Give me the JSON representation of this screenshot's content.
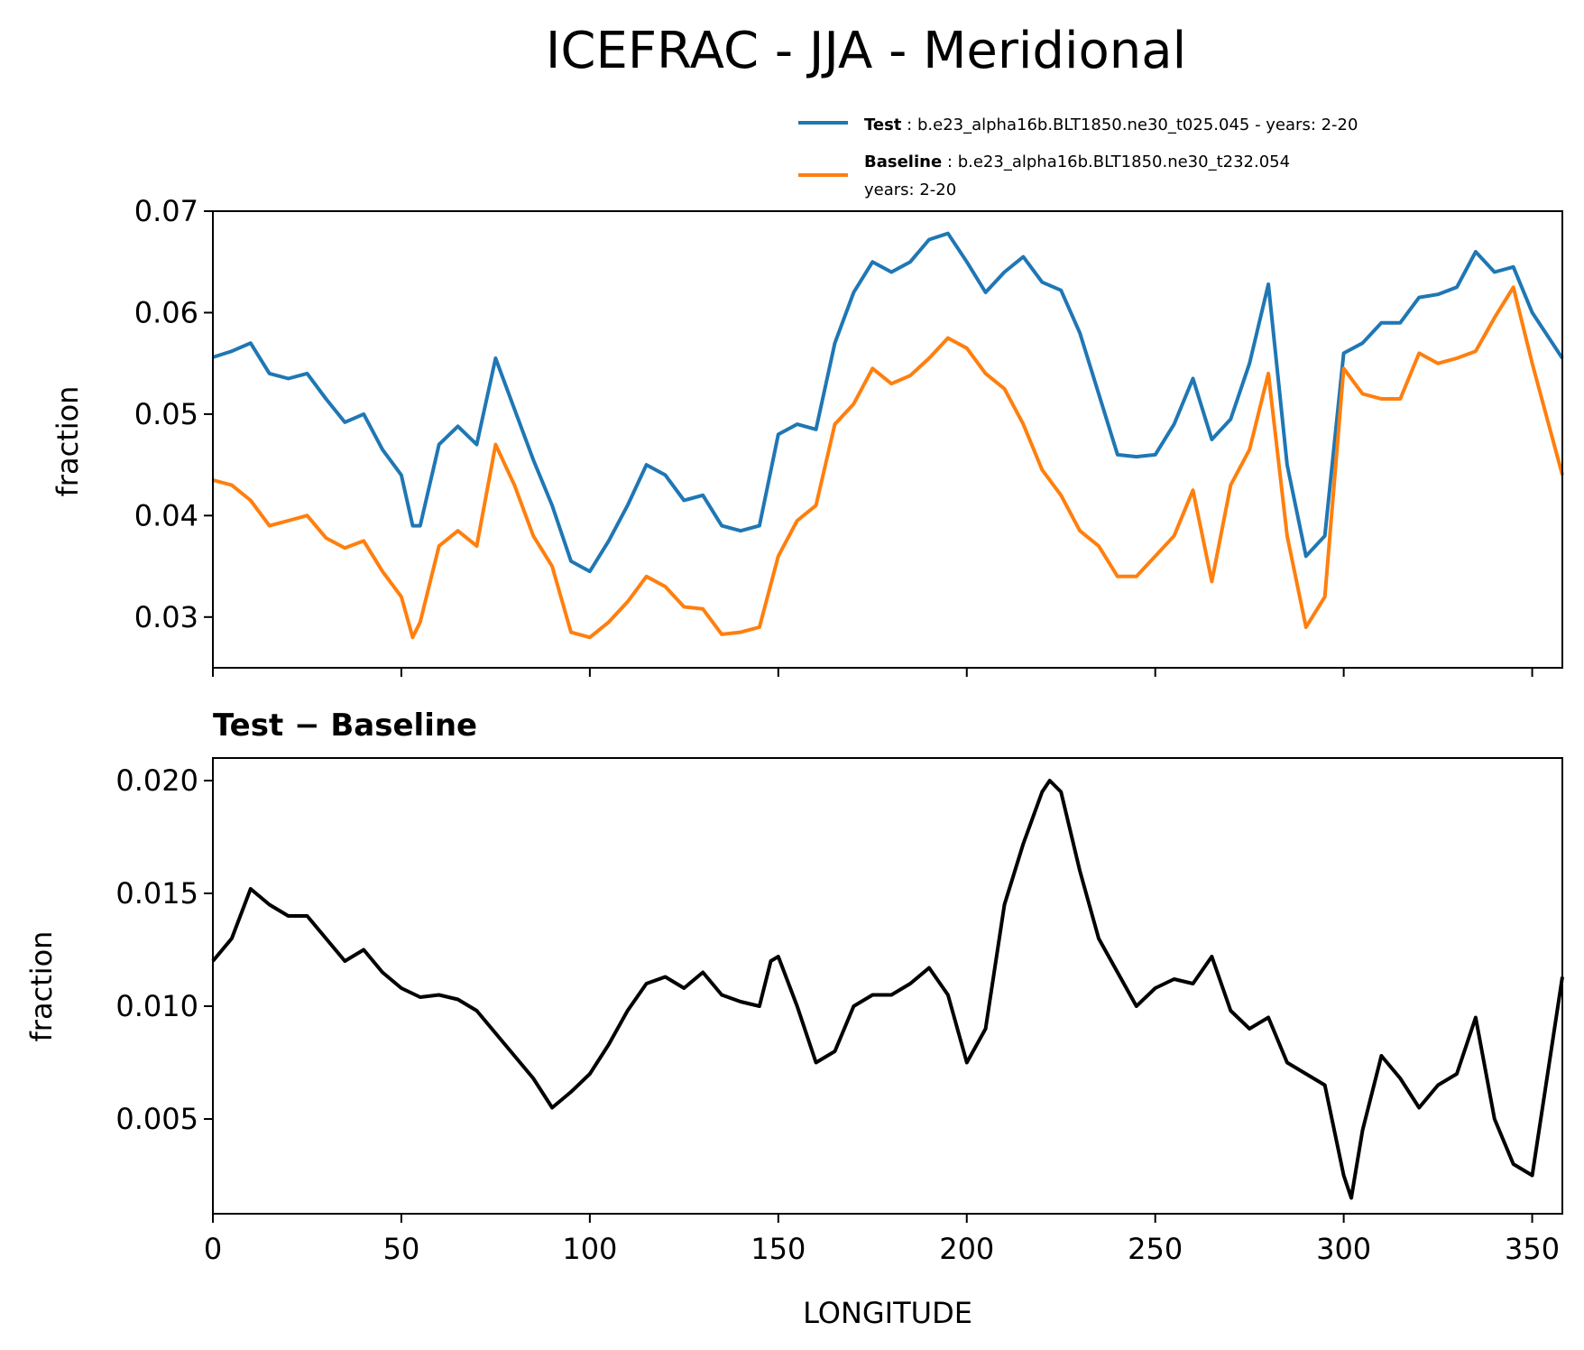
{
  "chart_data": [
    {
      "type": "line",
      "title": "ICEFRAC - JJA - Meridional",
      "xlabel": "",
      "ylabel": "fraction",
      "xlim": [
        0,
        358
      ],
      "ylim": [
        0.025,
        0.07
      ],
      "xticks": [
        0,
        50,
        100,
        150,
        200,
        250,
        300,
        350
      ],
      "yticks": [
        0.03,
        0.04,
        0.05,
        0.06,
        0.07
      ],
      "ytick_labels": [
        "0.03",
        "0.04",
        "0.05",
        "0.06",
        "0.07"
      ],
      "legend": {
        "placement": "top-right",
        "entries": [
          {
            "bold": "Test",
            "sep": ":",
            "text": "b.e23_alpha16b.BLT1850.ne30_t025.045 - years: 2-20",
            "text2": ""
          },
          {
            "bold": "Baseline",
            "sep": ":",
            "text": "b.e23_alpha16b.BLT1850.ne30_t232.054",
            "text2": "years: 2-20"
          }
        ]
      },
      "series": [
        {
          "name": "Test",
          "color": "#1f77b4",
          "x": [
            0,
            5,
            10,
            15,
            20,
            25,
            30,
            35,
            40,
            45,
            50,
            53,
            55,
            60,
            65,
            70,
            75,
            80,
            85,
            90,
            95,
            100,
            105,
            110,
            115,
            120,
            125,
            130,
            135,
            140,
            145,
            150,
            155,
            160,
            165,
            170,
            175,
            180,
            185,
            190,
            195,
            200,
            205,
            210,
            215,
            220,
            225,
            230,
            235,
            240,
            245,
            250,
            255,
            260,
            265,
            270,
            275,
            280,
            285,
            290,
            295,
            300,
            305,
            310,
            315,
            320,
            325,
            330,
            335,
            340,
            345,
            350,
            358
          ],
          "values": [
            0.0556,
            0.0562,
            0.057,
            0.054,
            0.0535,
            0.054,
            0.0515,
            0.0492,
            0.05,
            0.0465,
            0.044,
            0.039,
            0.039,
            0.047,
            0.0488,
            0.047,
            0.0555,
            0.0505,
            0.0455,
            0.041,
            0.0355,
            0.0345,
            0.0375,
            0.041,
            0.045,
            0.044,
            0.0415,
            0.042,
            0.039,
            0.0385,
            0.039,
            0.048,
            0.049,
            0.0485,
            0.057,
            0.062,
            0.065,
            0.064,
            0.065,
            0.0672,
            0.0678,
            0.065,
            0.062,
            0.064,
            0.0655,
            0.063,
            0.0622,
            0.058,
            0.052,
            0.046,
            0.0458,
            0.046,
            0.049,
            0.0535,
            0.0475,
            0.0495,
            0.055,
            0.0628,
            0.045,
            0.036,
            0.038,
            0.056,
            0.057,
            0.059,
            0.059,
            0.0615,
            0.0618,
            0.0625,
            0.066,
            0.064,
            0.0645,
            0.06,
            0.0555
          ]
        },
        {
          "name": "Baseline",
          "color": "#ff7f0e",
          "x": [
            0,
            5,
            10,
            15,
            20,
            25,
            30,
            35,
            40,
            45,
            50,
            53,
            55,
            60,
            65,
            70,
            75,
            80,
            85,
            90,
            95,
            100,
            105,
            110,
            115,
            120,
            125,
            130,
            135,
            140,
            145,
            150,
            155,
            160,
            165,
            170,
            175,
            180,
            185,
            190,
            195,
            200,
            205,
            210,
            215,
            220,
            225,
            230,
            235,
            240,
            245,
            250,
            255,
            260,
            265,
            270,
            275,
            280,
            285,
            290,
            295,
            300,
            305,
            310,
            315,
            320,
            325,
            330,
            335,
            340,
            345,
            350,
            358
          ],
          "values": [
            0.0435,
            0.043,
            0.0415,
            0.039,
            0.0395,
            0.04,
            0.0378,
            0.0368,
            0.0375,
            0.0345,
            0.032,
            0.028,
            0.0295,
            0.037,
            0.0385,
            0.037,
            0.047,
            0.043,
            0.038,
            0.035,
            0.0285,
            0.028,
            0.0295,
            0.0315,
            0.034,
            0.033,
            0.031,
            0.0308,
            0.0283,
            0.0285,
            0.029,
            0.036,
            0.0395,
            0.041,
            0.049,
            0.051,
            0.0545,
            0.053,
            0.0538,
            0.0555,
            0.0575,
            0.0565,
            0.054,
            0.0525,
            0.049,
            0.0445,
            0.042,
            0.0385,
            0.037,
            0.034,
            0.034,
            0.036,
            0.038,
            0.0425,
            0.0335,
            0.043,
            0.0465,
            0.054,
            0.038,
            0.029,
            0.032,
            0.0545,
            0.052,
            0.0515,
            0.0515,
            0.056,
            0.055,
            0.0555,
            0.0562,
            0.0595,
            0.0625,
            0.055,
            0.044
          ]
        }
      ]
    },
    {
      "type": "line",
      "title": "Test − Baseline",
      "xlabel": "LONGITUDE",
      "ylabel": "fraction",
      "xlim": [
        0,
        358
      ],
      "ylim": [
        0.0008,
        0.021
      ],
      "xticks": [
        0,
        50,
        100,
        150,
        200,
        250,
        300,
        350
      ],
      "xtick_labels": [
        "0",
        "50",
        "100",
        "150",
        "200",
        "250",
        "300",
        "350"
      ],
      "yticks": [
        0.005,
        0.01,
        0.015,
        0.02
      ],
      "ytick_labels": [
        "0.005",
        "0.010",
        "0.015",
        "0.020"
      ],
      "series": [
        {
          "name": "Test − Baseline",
          "color": "#000000",
          "x": [
            0,
            5,
            10,
            15,
            20,
            25,
            30,
            35,
            40,
            45,
            50,
            55,
            60,
            65,
            70,
            75,
            80,
            85,
            90,
            95,
            100,
            105,
            110,
            115,
            120,
            125,
            130,
            135,
            140,
            145,
            148,
            150,
            155,
            160,
            165,
            170,
            175,
            180,
            185,
            190,
            195,
            200,
            205,
            210,
            215,
            220,
            222,
            225,
            230,
            235,
            240,
            245,
            250,
            255,
            260,
            265,
            270,
            275,
            280,
            285,
            290,
            295,
            300,
            302,
            305,
            310,
            315,
            320,
            325,
            330,
            335,
            340,
            345,
            350,
            358
          ],
          "values": [
            0.012,
            0.013,
            0.0152,
            0.0145,
            0.014,
            0.014,
            0.013,
            0.012,
            0.0125,
            0.0115,
            0.0108,
            0.0104,
            0.0105,
            0.0103,
            0.0098,
            0.0088,
            0.0078,
            0.0068,
            0.0055,
            0.0062,
            0.007,
            0.0083,
            0.0098,
            0.011,
            0.0113,
            0.0108,
            0.0115,
            0.0105,
            0.0102,
            0.01,
            0.012,
            0.0122,
            0.01,
            0.0075,
            0.008,
            0.01,
            0.0105,
            0.0105,
            0.011,
            0.0117,
            0.0105,
            0.0075,
            0.009,
            0.0145,
            0.0172,
            0.0195,
            0.02,
            0.0195,
            0.016,
            0.013,
            0.0115,
            0.01,
            0.0108,
            0.0112,
            0.011,
            0.0122,
            0.0098,
            0.009,
            0.0095,
            0.0075,
            0.007,
            0.0065,
            0.0025,
            0.0015,
            0.0045,
            0.0078,
            0.0068,
            0.0055,
            0.0065,
            0.007,
            0.0095,
            0.005,
            0.003,
            0.0025,
            0.0113
          ]
        }
      ]
    }
  ]
}
